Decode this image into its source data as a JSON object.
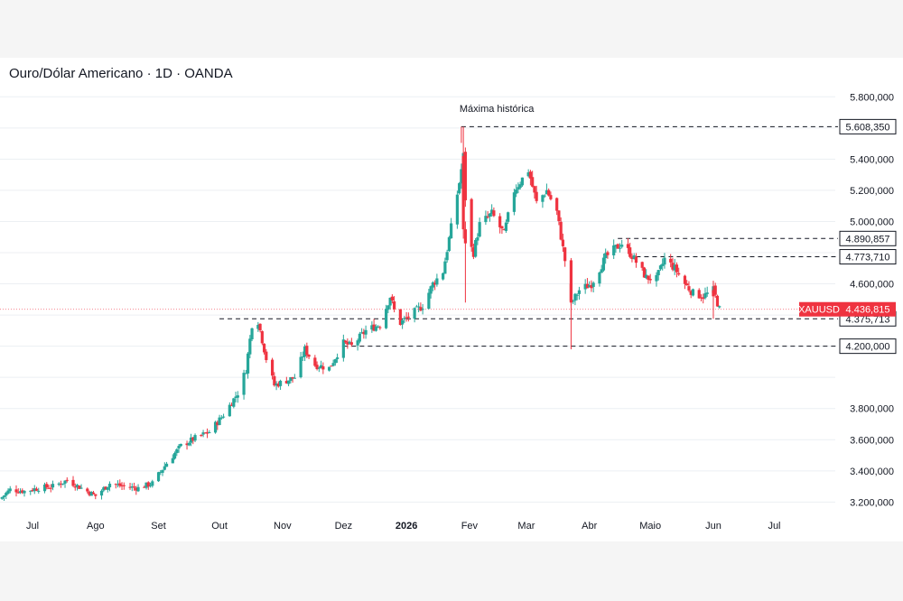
{
  "chart": {
    "title": "Ouro/Dólar Americano · 1D · OANDA"
  },
  "colors": {
    "up": "#26a69a",
    "down": "#ef3340",
    "price_tag": "#ef3340",
    "level_line": "#131722",
    "grid": "#eceff3"
  },
  "chart_data": {
    "type": "candlestick",
    "title": "Ouro/Dólar Americano · 1D · OANDA",
    "symbol": "XAUUSD",
    "last_price": 4436.815,
    "last_price_label": "4.436,815",
    "ylim": [
      3150,
      5900
    ],
    "y_ticks": [
      3200,
      3400,
      3600,
      3800,
      4000,
      4200,
      4400,
      4600,
      4800,
      5000,
      5200,
      5400,
      5600,
      5800
    ],
    "y_tick_labels": [
      {
        "value": 5800,
        "label": "5.800,000"
      },
      {
        "value": 5400,
        "label": "5.400,000"
      },
      {
        "value": 5200,
        "label": "5.200,000"
      },
      {
        "value": 5000,
        "label": "5.000,000"
      },
      {
        "value": 4600,
        "label": "4.600,000"
      },
      {
        "value": 4200,
        "label": "4.200,000"
      },
      {
        "value": 3800,
        "label": "3.800,000"
      },
      {
        "value": 3600,
        "label": "3.600,000"
      },
      {
        "value": 3400,
        "label": "3.400,000"
      },
      {
        "value": 3200,
        "label": "3.200,000"
      }
    ],
    "x_range": [
      "2025-06-15",
      "2026-07-31"
    ],
    "x_labels": [
      {
        "date": "2025-07-01",
        "label": "Jul",
        "bold": false
      },
      {
        "date": "2025-08-01",
        "label": "Ago",
        "bold": false
      },
      {
        "date": "2025-09-01",
        "label": "Set",
        "bold": false
      },
      {
        "date": "2025-10-01",
        "label": "Out",
        "bold": false
      },
      {
        "date": "2025-11-01",
        "label": "Nov",
        "bold": false
      },
      {
        "date": "2025-12-01",
        "label": "Dez",
        "bold": false
      },
      {
        "date": "2026-01-01",
        "label": "2026",
        "bold": true
      },
      {
        "date": "2026-02-01",
        "label": "Fev",
        "bold": false
      },
      {
        "date": "2026-03-01",
        "label": "Mar",
        "bold": false
      },
      {
        "date": "2026-04-01",
        "label": "Abr",
        "bold": false
      },
      {
        "date": "2026-05-01",
        "label": "Maio",
        "bold": false
      },
      {
        "date": "2026-06-01",
        "label": "Jun",
        "bold": false
      },
      {
        "date": "2026-07-01",
        "label": "Jul",
        "bold": false
      }
    ],
    "levels": [
      {
        "value": 5608.35,
        "label": "5.608,350",
        "from": "2026-01-28"
      },
      {
        "value": 4890.857,
        "label": "4.890,857",
        "from": "2026-04-15"
      },
      {
        "value": 4773.71,
        "label": "4.773,710",
        "from": "2026-04-24"
      },
      {
        "value": 4375.713,
        "label": "4.375,713",
        "from": "2025-10-01"
      },
      {
        "value": 4200.0,
        "label": "4.200,000",
        "from": "2025-12-01"
      }
    ],
    "annotation": {
      "text": "Máxima histórica",
      "date": "2026-01-28",
      "value": 5608.35
    },
    "price_path": [
      [
        "2025-06-15",
        3220
      ],
      [
        "2025-06-20",
        3280
      ],
      [
        "2025-06-27",
        3270
      ],
      [
        "2025-07-04",
        3290
      ],
      [
        "2025-07-11",
        3300
      ],
      [
        "2025-07-18",
        3340
      ],
      [
        "2025-07-25",
        3290
      ],
      [
        "2025-08-01",
        3240
      ],
      [
        "2025-08-08",
        3320
      ],
      [
        "2025-08-15",
        3300
      ],
      [
        "2025-08-22",
        3290
      ],
      [
        "2025-08-29",
        3320
      ],
      [
        "2025-09-05",
        3450
      ],
      [
        "2025-09-12",
        3560
      ],
      [
        "2025-09-19",
        3610
      ],
      [
        "2025-09-26",
        3650
      ],
      [
        "2025-10-03",
        3760
      ],
      [
        "2025-10-10",
        3900
      ],
      [
        "2025-10-14",
        4050
      ],
      [
        "2025-10-17",
        4340
      ],
      [
        "2025-10-20",
        4360
      ],
      [
        "2025-10-24",
        4120
      ],
      [
        "2025-10-28",
        3950
      ],
      [
        "2025-11-03",
        3980
      ],
      [
        "2025-11-07",
        4000
      ],
      [
        "2025-11-12",
        4180
      ],
      [
        "2025-11-17",
        4080
      ],
      [
        "2025-11-24",
        4060
      ],
      [
        "2025-12-01",
        4220
      ],
      [
        "2025-12-05",
        4200
      ],
      [
        "2025-12-12",
        4300
      ],
      [
        "2025-12-19",
        4340
      ],
      [
        "2025-12-24",
        4520
      ],
      [
        "2025-12-28",
        4340
      ],
      [
        "2026-01-02",
        4390
      ],
      [
        "2026-01-09",
        4460
      ],
      [
        "2026-01-14",
        4600
      ],
      [
        "2026-01-19",
        4680
      ],
      [
        "2026-01-23",
        4960
      ],
      [
        "2026-01-27",
        5250
      ],
      [
        "2026-01-29",
        5420
      ],
      [
        "2026-01-31",
        4880
      ],
      [
        "2026-02-03",
        4800
      ],
      [
        "2026-02-06",
        4980
      ],
      [
        "2026-02-12",
        5050
      ],
      [
        "2026-02-18",
        4920
      ],
      [
        "2026-02-23",
        5200
      ],
      [
        "2026-03-02",
        5330
      ],
      [
        "2026-03-06",
        5120
      ],
      [
        "2026-03-11",
        5200
      ],
      [
        "2026-03-16",
        5060
      ],
      [
        "2026-03-20",
        4750
      ],
      [
        "2026-03-23",
        4470
      ],
      [
        "2026-03-27",
        4560
      ],
      [
        "2026-04-02",
        4600
      ],
      [
        "2026-04-09",
        4770
      ],
      [
        "2026-04-14",
        4830
      ],
      [
        "2026-04-17",
        4860
      ],
      [
        "2026-04-22",
        4780
      ],
      [
        "2026-04-29",
        4640
      ],
      [
        "2026-05-04",
        4630
      ],
      [
        "2026-05-08",
        4760
      ],
      [
        "2026-05-13",
        4700
      ],
      [
        "2026-05-18",
        4600
      ],
      [
        "2026-05-22",
        4540
      ],
      [
        "2026-05-27",
        4520
      ],
      [
        "2026-06-01",
        4560
      ],
      [
        "2026-06-04",
        4436.815
      ]
    ]
  }
}
